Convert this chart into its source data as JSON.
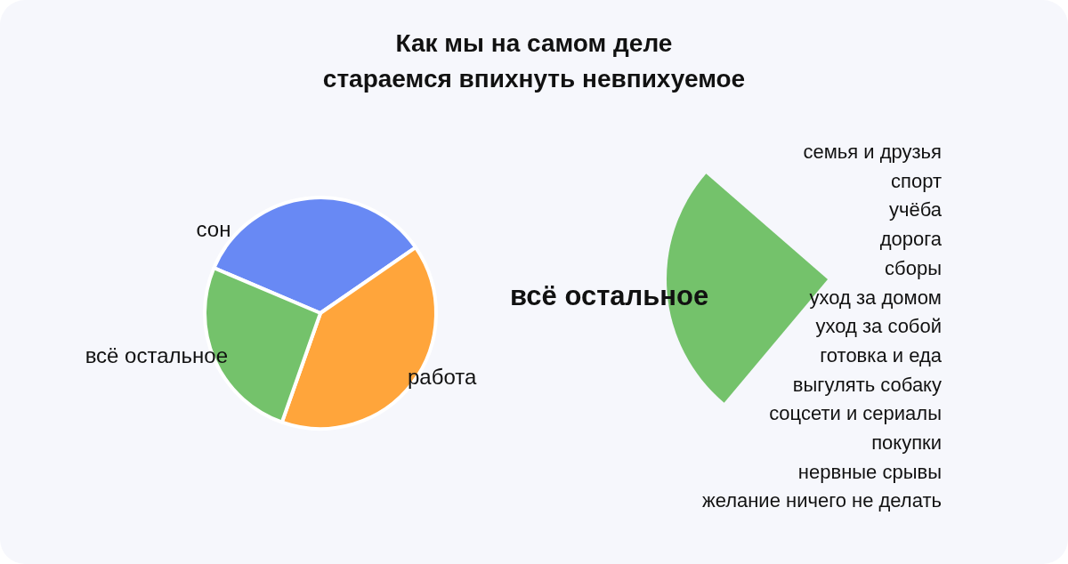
{
  "chart_data": [
    {
      "type": "pie",
      "title": "Как мы на самом деле\nстараемся впихнуть невпихуемое",
      "categories": [
        "сон",
        "работа",
        "всё остальное"
      ],
      "values": [
        34,
        40,
        26
      ],
      "colors": [
        "#6889f4",
        "#ffa53b",
        "#74c26b"
      ]
    },
    {
      "type": "other",
      "title": "всё остальное",
      "annotations": [
        "семья и друзья",
        "спорт",
        "учёба",
        "дорога",
        "сборы",
        "уход за домом",
        "уход за собой",
        "готовка и еда",
        "выгулять собаку",
        "соцсети и сериалы",
        "покупки",
        "нервные срывы",
        "желание ничего не делать"
      ]
    }
  ]
}
